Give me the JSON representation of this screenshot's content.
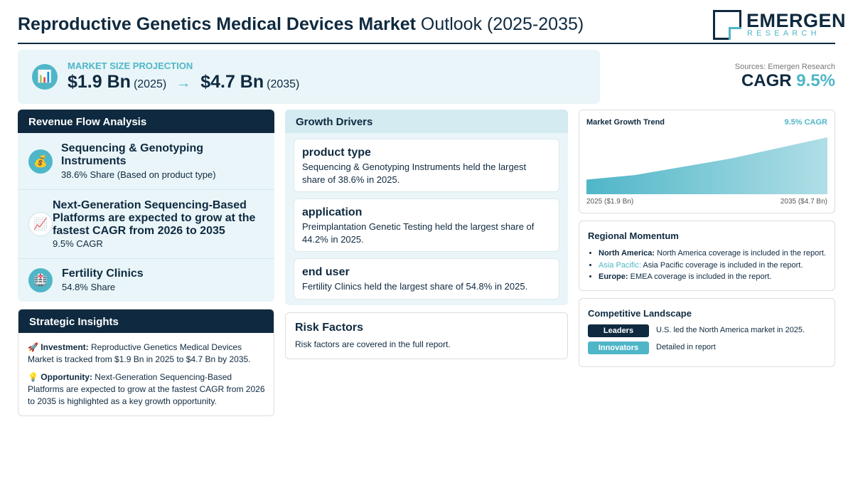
{
  "header": {
    "title_bold": "Reproductive Genetics Medical Devices Market",
    "title_rest": "Outlook (2025-2035)",
    "logo_name": "EMERGEN",
    "logo_sub": "RESEARCH"
  },
  "projection": {
    "label": "MARKET SIZE PROJECTION",
    "icon": "bar-chart-icon",
    "start_value": "$1.9 Bn",
    "start_year": "(2025)",
    "arrow": "→",
    "end_value": "$4.7 Bn",
    "end_year": "(2035)"
  },
  "cagr": {
    "source": "Sources: Emergen Research",
    "label": "CAGR",
    "value": "9.5%"
  },
  "revenue": {
    "heading": "Revenue Flow Analysis",
    "items": [
      {
        "icon": "money-bag-icon",
        "icon_glyph": "💰",
        "title": "Sequencing & Genotyping Instruments",
        "sub": "38.6% Share (Based on product type)"
      },
      {
        "icon": "chart-increasing-icon",
        "icon_glyph": "📈",
        "title": "Next-Generation Sequencing-Based Platforms are expected to grow at the fastest CAGR from 2026 to 2035",
        "sub": "9.5% CAGR"
      },
      {
        "icon": "hospital-icon",
        "icon_glyph": "🏥",
        "title": "Fertility Clinics",
        "sub": "54.8% Share"
      }
    ]
  },
  "strategic": {
    "heading": "Strategic Insights",
    "investment_icon": "🚀",
    "investment_label": "Investment:",
    "investment_text": "Reproductive Genetics Medical Devices Market is tracked from $1.9 Bn in 2025 to $4.7 Bn by 2035.",
    "opportunity_icon": "💡",
    "opportunity_label": "Opportunity:",
    "opportunity_text": "Next-Generation Sequencing-Based Platforms are expected to grow at the fastest CAGR from 2026 to 2035 is highlighted as a key growth opportunity."
  },
  "drivers": {
    "heading": "Growth Drivers",
    "items": [
      {
        "title": "product type",
        "text": "Sequencing & Genotyping Instruments held the largest share of 38.6% in 2025."
      },
      {
        "title": "application",
        "text": "Preimplantation Genetic Testing held the largest share of 44.2% in 2025."
      },
      {
        "title": "end user",
        "text": "Fertility Clinics held the largest share of 54.8% in 2025."
      }
    ]
  },
  "risk": {
    "heading": "Risk Factors",
    "text": "Risk factors are covered in the full report."
  },
  "trend": {
    "title": "Market Growth Trend",
    "cagr": "9.5% CAGR",
    "left_label": "2025 ($1.9 Bn)",
    "right_label": "2035 ($4.7 Bn)",
    "color": "#4fb6c8"
  },
  "chart_data": {
    "type": "area",
    "x": [
      2025,
      2027,
      2031,
      2035
    ],
    "values": [
      1.9,
      2.2,
      3.3,
      4.7
    ],
    "title": "Market Growth Trend"
  },
  "regional": {
    "heading": "Regional Momentum",
    "items": [
      {
        "name": "North America:",
        "text": "North America coverage is included in the report."
      },
      {
        "name": "Asia Pacific:",
        "text": "Asia Pacific coverage is included in the report."
      },
      {
        "name": "Europe:",
        "text": "EMEA coverage is included in the report."
      }
    ]
  },
  "competitive": {
    "heading": "Competitive Landscape",
    "leaders_label": "Leaders",
    "leaders_text": "U.S. led the North America market in 2025.",
    "innovators_label": "Innovators",
    "innovators_text": "Detailed in report"
  },
  "colors": {
    "navy": "#0f2a40",
    "teal": "#4fb6c8",
    "light_panel": "#e9f5f8"
  }
}
